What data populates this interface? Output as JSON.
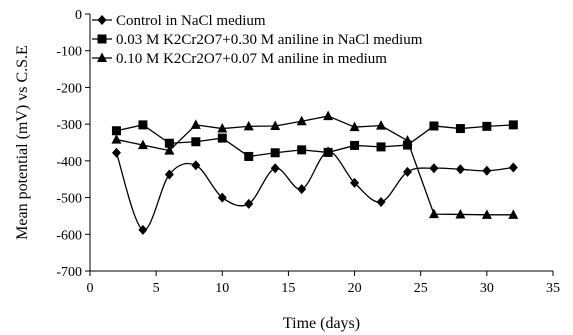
{
  "chart_data": {
    "type": "line",
    "xlabel": "Time (days)",
    "ylabel": "Mean potential (mV) vs C.S.E",
    "xlim": [
      0,
      35
    ],
    "ylim": [
      -700,
      0
    ],
    "x_ticks": [
      0,
      5,
      10,
      15,
      20,
      25,
      30,
      35
    ],
    "y_ticks": [
      0,
      -100,
      -200,
      -300,
      -400,
      -500,
      -600,
      -700
    ],
    "grid": false,
    "legend_position": "top-left",
    "series": [
      {
        "name": "Control in NaCl medium",
        "marker": "diamond",
        "smooth": true,
        "x": [
          2,
          4,
          6,
          8,
          10,
          12,
          14,
          16,
          18,
          20,
          22,
          24,
          26,
          28,
          30,
          32
        ],
        "y": [
          -378,
          -588,
          -437,
          -412,
          -500,
          -517,
          -420,
          -477,
          -375,
          -460,
          -512,
          -430,
          -420,
          -423,
          -427,
          -418
        ]
      },
      {
        "name": "0.03 M K2Cr2O7+0.30 M aniline in NaCl medium",
        "marker": "square",
        "smooth": false,
        "x": [
          2,
          4,
          6,
          8,
          10,
          12,
          14,
          16,
          18,
          20,
          22,
          24,
          26,
          28,
          30,
          32
        ],
        "y": [
          -318,
          -302,
          -352,
          -348,
          -338,
          -388,
          -378,
          -370,
          -377,
          -358,
          -362,
          -357,
          -305,
          -312,
          -306,
          -302
        ]
      },
      {
        "name": "0.10 M K2Cr2O7+0.07 M aniline in medium",
        "marker": "triangle",
        "smooth": false,
        "x": [
          2,
          4,
          6,
          8,
          10,
          12,
          14,
          16,
          18,
          20,
          22,
          24,
          26,
          28,
          30,
          32
        ],
        "y": [
          -342,
          -357,
          -372,
          -302,
          -312,
          -306,
          -305,
          -292,
          -278,
          -308,
          -304,
          -345,
          -545,
          -546,
          -547,
          -547
        ]
      }
    ]
  }
}
